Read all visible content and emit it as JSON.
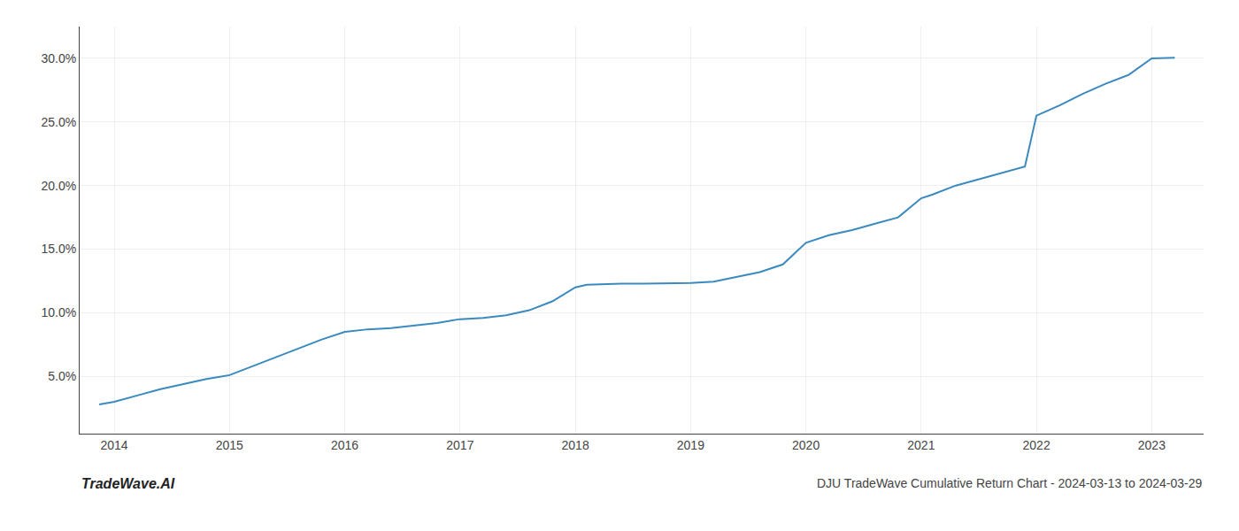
{
  "chart_data": {
    "type": "line",
    "title": "DJU TradeWave Cumulative Return Chart - 2024-03-13 to 2024-03-29",
    "annotations": [
      "TradeWave.AI"
    ],
    "x": [
      2013.87,
      2014.0,
      2014.2,
      2014.4,
      2014.6,
      2014.8,
      2015.0,
      2015.2,
      2015.4,
      2015.6,
      2015.8,
      2016.0,
      2016.2,
      2016.4,
      2016.6,
      2016.8,
      2017.0,
      2017.2,
      2017.4,
      2017.6,
      2017.8,
      2018.0,
      2018.1,
      2018.2,
      2018.4,
      2018.6,
      2018.8,
      2019.0,
      2019.2,
      2019.4,
      2019.6,
      2019.8,
      2020.0,
      2020.2,
      2020.4,
      2020.6,
      2020.8,
      2021.0,
      2021.1,
      2021.3,
      2021.5,
      2021.7,
      2021.9,
      2022.0,
      2022.2,
      2022.4,
      2022.6,
      2022.8,
      2023.0,
      2023.2
    ],
    "values": [
      2.8,
      3.0,
      3.5,
      4.0,
      4.4,
      4.8,
      5.1,
      5.8,
      6.5,
      7.2,
      7.9,
      8.5,
      8.7,
      8.8,
      9.0,
      9.2,
      9.5,
      9.6,
      9.8,
      10.2,
      10.9,
      12.0,
      12.2,
      12.25,
      12.3,
      12.3,
      12.3,
      12.35,
      12.45,
      12.8,
      13.2,
      13.8,
      15.5,
      16.1,
      16.5,
      17.0,
      17.5,
      19.0,
      19.3,
      20.0,
      20.5,
      21.0,
      21.5,
      25.5,
      26.3,
      27.2,
      28.0,
      28.7,
      30.0,
      30.05
    ],
    "color": "#3a8abf",
    "xlim": [
      2013.7,
      2023.45
    ],
    "xticks": [
      2014,
      2015,
      2016,
      2017,
      2018,
      2019,
      2020,
      2021,
      2022,
      2023
    ],
    "ylim": [
      0.5,
      32.5
    ],
    "yticks": [
      {
        "value": 5.0,
        "label": "5.0%"
      },
      {
        "value": 10.0,
        "label": "10.0%"
      },
      {
        "value": 15.0,
        "label": "15.0%"
      },
      {
        "value": 20.0,
        "label": "20.0%"
      },
      {
        "value": 25.0,
        "label": "25.0%"
      },
      {
        "value": 30.0,
        "label": "30.0%"
      }
    ],
    "grid": true
  }
}
